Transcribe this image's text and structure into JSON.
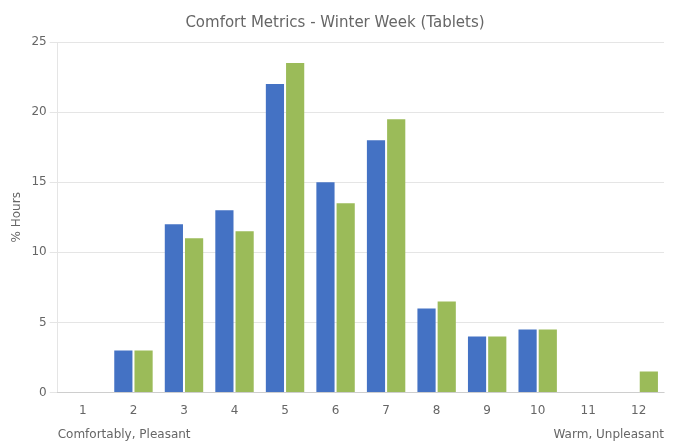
{
  "chart_data": {
    "type": "bar",
    "title": "Comfort Metrics - Winter Week (Tablets)",
    "ylabel": "% Hours",
    "annotations": [
      "Comfortably, Pleasant",
      "Warm, Unpleasant"
    ],
    "categories": [
      "1",
      "2",
      "3",
      "4",
      "5",
      "6",
      "7",
      "8",
      "9",
      "10",
      "11",
      "12"
    ],
    "series": [
      {
        "color": "#4472C4",
        "values": [
          0,
          3,
          12,
          13,
          22,
          15,
          18,
          6,
          4,
          4.5,
          0.05,
          0
        ]
      },
      {
        "color": "#9BBB59",
        "values": [
          0,
          3,
          11,
          11.5,
          23.5,
          13.5,
          19.5,
          6.5,
          4,
          4.5,
          0,
          1.5
        ]
      }
    ],
    "ylim": [
      0,
      25
    ],
    "yticks": [
      0,
      5,
      10,
      15,
      20,
      25
    ],
    "grid": true
  }
}
